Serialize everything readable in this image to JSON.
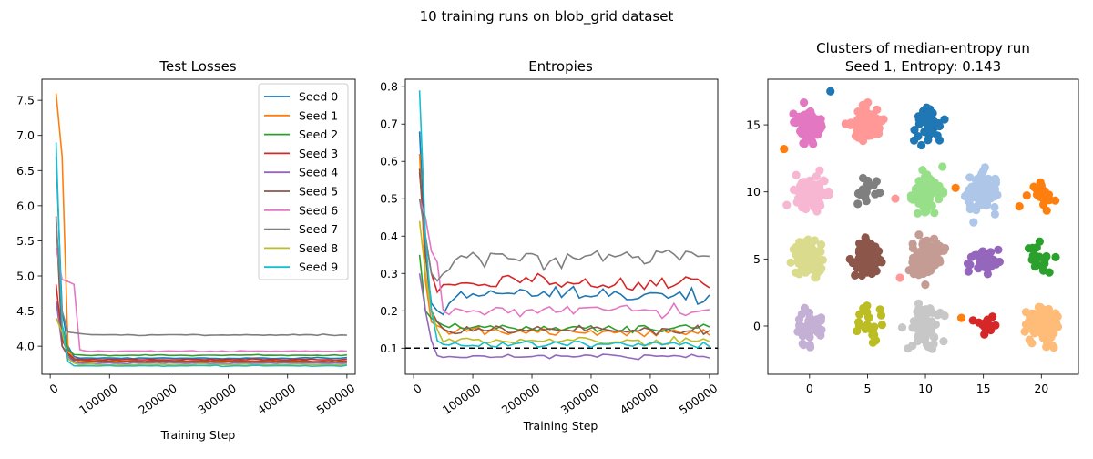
{
  "suptitle": "10 training runs on blob_grid dataset",
  "colors": {
    "tab10": [
      "#1f77b4",
      "#ff7f0e",
      "#2ca02c",
      "#d62728",
      "#9467bd",
      "#8c564b",
      "#e377c2",
      "#7f7f7f",
      "#bcbd22",
      "#17becf"
    ],
    "tab20": [
      "#1f77b4",
      "#aec7e8",
      "#ff7f0e",
      "#ffbb78",
      "#2ca02c",
      "#98df8a",
      "#d62728",
      "#ff9896",
      "#9467bd",
      "#c5b0d5",
      "#8c564b",
      "#c49c94",
      "#e377c2",
      "#f7b6d2",
      "#7f7f7f",
      "#c7c7c7",
      "#bcbd22",
      "#dbdb8d",
      "#17becf",
      "#9edae5"
    ]
  },
  "chart_data": [
    {
      "type": "line",
      "title": "Test Losses",
      "xlabel": "Training Step",
      "ylabel": "",
      "xlim": [
        -14000,
        514000
      ],
      "ylim": [
        3.6,
        7.8
      ],
      "xticks": [
        0,
        100000,
        200000,
        300000,
        400000,
        500000
      ],
      "xtick_labels": [
        "0",
        "100000",
        "200000",
        "300000",
        "400000",
        "500000"
      ],
      "yticks": [
        4.0,
        4.5,
        5.0,
        5.5,
        6.0,
        6.5,
        7.0,
        7.5
      ],
      "ytick_labels": [
        "4.0",
        "4.5",
        "5.0",
        "5.5",
        "6.0",
        "6.5",
        "7.0",
        "7.5"
      ],
      "legend": "top-right",
      "series": [
        {
          "name": "Seed 0",
          "start": [
            6.7,
            4.5,
            4.0,
            3.85
          ],
          "plateau": 3.83
        },
        {
          "name": "Seed 1",
          "start": [
            7.6,
            6.7,
            3.95,
            3.82
          ],
          "plateau": 3.78
        },
        {
          "name": "Seed 2",
          "start": [
            4.65,
            4.3,
            3.95,
            3.88
          ],
          "plateau": 3.87
        },
        {
          "name": "Seed 3",
          "start": [
            4.88,
            4.1,
            3.9,
            3.82
          ],
          "plateau": 3.81
        },
        {
          "name": "Seed 4",
          "start": [
            4.65,
            4.0,
            3.85,
            3.78
          ],
          "plateau": 3.76
        },
        {
          "name": "Seed 5",
          "start": [
            5.85,
            4.0,
            3.88,
            3.8
          ],
          "plateau": 3.79
        },
        {
          "name": "Seed 6",
          "start": [
            5.4,
            4.95,
            4.92,
            4.88,
            3.95
          ],
          "plateau": 3.93
        },
        {
          "name": "Seed 7",
          "start": [
            5.8,
            4.5,
            4.2,
            4.19,
            4.18
          ],
          "plateau": 4.16
        },
        {
          "name": "Seed 8",
          "start": [
            4.4,
            4.2,
            3.82,
            3.76
          ],
          "plateau": 3.74
        },
        {
          "name": "Seed 9",
          "start": [
            6.9,
            4.3,
            3.78,
            3.72
          ],
          "plateau": 3.72
        }
      ]
    },
    {
      "type": "line",
      "title": "Entropies",
      "xlabel": "Training Step",
      "ylabel": "",
      "xlim": [
        -14000,
        514000
      ],
      "ylim": [
        0.03,
        0.82
      ],
      "xticks": [
        0,
        100000,
        200000,
        300000,
        400000,
        500000
      ],
      "xtick_labels": [
        "0",
        "100000",
        "200000",
        "300000",
        "400000",
        "500000"
      ],
      "yticks": [
        0.1,
        0.2,
        0.3,
        0.4,
        0.5,
        0.6,
        0.7,
        0.8
      ],
      "ytick_labels": [
        "0.1",
        "0.2",
        "0.3",
        "0.4",
        "0.5",
        "0.6",
        "0.7",
        "0.8"
      ],
      "reference_line": {
        "y": 0.1,
        "style": "dashed",
        "color": "#000000"
      },
      "series": [
        {
          "name": "Seed 0",
          "start": [
            0.68,
            0.35,
            0.22,
            0.2,
            0.19,
            0.22
          ],
          "plateau": 0.245
        },
        {
          "name": "Seed 1",
          "start": [
            0.62,
            0.28,
            0.17,
            0.16
          ],
          "plateau": 0.145
        },
        {
          "name": "Seed 2",
          "start": [
            0.35,
            0.2,
            0.18,
            0.17
          ],
          "plateau": 0.155
        },
        {
          "name": "Seed 3",
          "start": [
            0.57,
            0.4,
            0.3,
            0.25,
            0.27
          ],
          "plateau": 0.275
        },
        {
          "name": "Seed 4",
          "start": [
            0.3,
            0.2,
            0.12,
            0.08,
            0.075
          ],
          "plateau": 0.078
        },
        {
          "name": "Seed 5",
          "start": [
            0.58,
            0.35,
            0.2,
            0.17
          ],
          "plateau": 0.15
        },
        {
          "name": "Seed 6",
          "start": [
            0.5,
            0.45,
            0.36,
            0.33,
            0.2,
            0.19
          ],
          "plateau": 0.2
        },
        {
          "name": "Seed 7",
          "start": [
            0.5,
            0.4,
            0.3,
            0.28,
            0.3,
            0.31
          ],
          "plateau": 0.345
        },
        {
          "name": "Seed 8",
          "start": [
            0.44,
            0.3,
            0.2,
            0.15
          ],
          "plateau": 0.12
        },
        {
          "name": "Seed 9",
          "start": [
            0.79,
            0.4,
            0.2,
            0.12,
            0.11
          ],
          "plateau": 0.11
        }
      ]
    },
    {
      "type": "scatter",
      "title": "Clusters of median-entropy run",
      "subtitle": "Seed 1, Entropy: 0.143",
      "xlim": [
        -3.6,
        23.2
      ],
      "ylim": [
        -3.6,
        18.4
      ],
      "xticks": [
        0,
        5,
        10,
        15,
        20
      ],
      "xtick_labels": [
        "0",
        "5",
        "10",
        "15",
        "20"
      ],
      "yticks": [
        0,
        5,
        10,
        15
      ],
      "ytick_labels": [
        "0",
        "5",
        "10",
        "15"
      ],
      "clusters": [
        {
          "cx": 0,
          "cy": 15,
          "n": 95,
          "spread": 0.9,
          "color_index": 12
        },
        {
          "cx": 5,
          "cy": 15,
          "n": 110,
          "spread": 0.95,
          "color_index": 7
        },
        {
          "cx": 10,
          "cy": 15,
          "n": 45,
          "spread": 1.1,
          "color_index": 0
        },
        {
          "cx": 0,
          "cy": 10,
          "n": 110,
          "spread": 1.0,
          "color_index": 13
        },
        {
          "cx": 5,
          "cy": 10,
          "n": 20,
          "spread": 0.9,
          "color_index": 14
        },
        {
          "cx": 10,
          "cy": 10,
          "n": 95,
          "spread": 1.05,
          "color_index": 5
        },
        {
          "cx": 15,
          "cy": 10,
          "n": 95,
          "spread": 1.05,
          "color_index": 1
        },
        {
          "cx": 20,
          "cy": 10,
          "n": 25,
          "spread": 0.9,
          "color_index": 2
        },
        {
          "cx": 0,
          "cy": 5,
          "n": 95,
          "spread": 1.05,
          "color_index": 17
        },
        {
          "cx": 5,
          "cy": 5,
          "n": 110,
          "spread": 0.9,
          "color_index": 10
        },
        {
          "cx": 10,
          "cy": 5,
          "n": 110,
          "spread": 1.0,
          "color_index": 11
        },
        {
          "cx": 15,
          "cy": 5,
          "n": 40,
          "spread": 0.9,
          "color_index": 8
        },
        {
          "cx": 20,
          "cy": 5,
          "n": 20,
          "spread": 1.0,
          "color_index": 4
        },
        {
          "cx": 0,
          "cy": 0,
          "n": 50,
          "spread": 1.0,
          "color_index": 9
        },
        {
          "cx": 5,
          "cy": 0,
          "n": 25,
          "spread": 1.0,
          "color_index": 16
        },
        {
          "cx": 10,
          "cy": 0,
          "n": 80,
          "spread": 1.0,
          "color_index": 15
        },
        {
          "cx": 15,
          "cy": 0,
          "n": 15,
          "spread": 0.7,
          "color_index": 6
        },
        {
          "cx": 20,
          "cy": 0,
          "n": 110,
          "spread": 1.05,
          "color_index": 3
        }
      ],
      "outliers": [
        {
          "x": -2.2,
          "y": 13.2,
          "color_index": 2
        },
        {
          "x": 1.8,
          "y": 17.5,
          "color_index": 0
        },
        {
          "x": 12.6,
          "y": 10.3,
          "color_index": 2
        },
        {
          "x": 13.1,
          "y": 0.6,
          "color_index": 2
        },
        {
          "x": 7.4,
          "y": 9.5,
          "color_index": 7
        },
        {
          "x": 7.8,
          "y": 3.6,
          "color_index": 7
        }
      ]
    }
  ]
}
